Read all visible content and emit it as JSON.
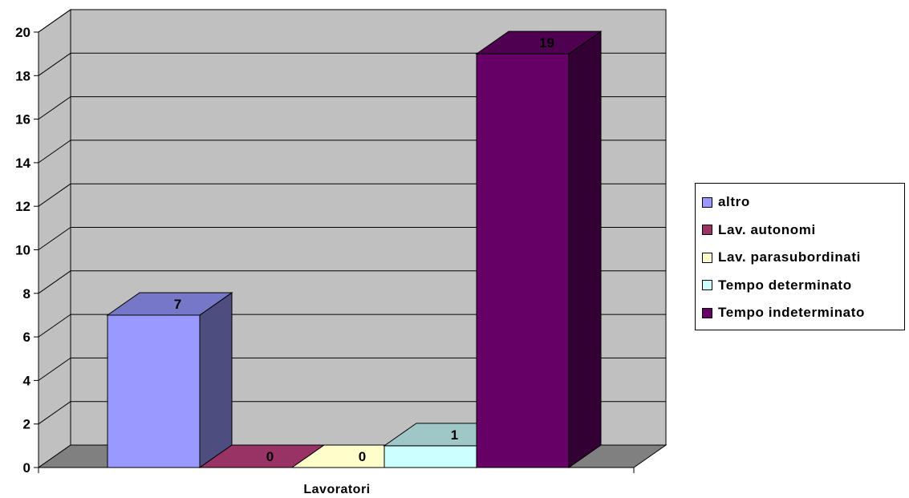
{
  "chart_data": {
    "type": "bar",
    "categories": [
      "Lavoratori"
    ],
    "xlabel": "Lavoratori",
    "ylabel": "",
    "ylim": [
      0,
      20
    ],
    "ytick_step": 2,
    "grid": true,
    "legend": "right",
    "series": [
      {
        "name": "altro",
        "values": [
          7
        ],
        "color": "#9999FF"
      },
      {
        "name": "Lav. autonomi",
        "values": [
          0
        ],
        "color": "#993366"
      },
      {
        "name": "Lav. parasubordinati",
        "values": [
          0
        ],
        "color": "#FFFFCC"
      },
      {
        "name": "Tempo determinato",
        "values": [
          1
        ],
        "color": "#CCFFFF"
      },
      {
        "name": "Tempo indeterminato",
        "values": [
          19
        ],
        "color": "#660066"
      }
    ],
    "wall_color": "#C0C0C0",
    "floor_color": "#808080"
  }
}
